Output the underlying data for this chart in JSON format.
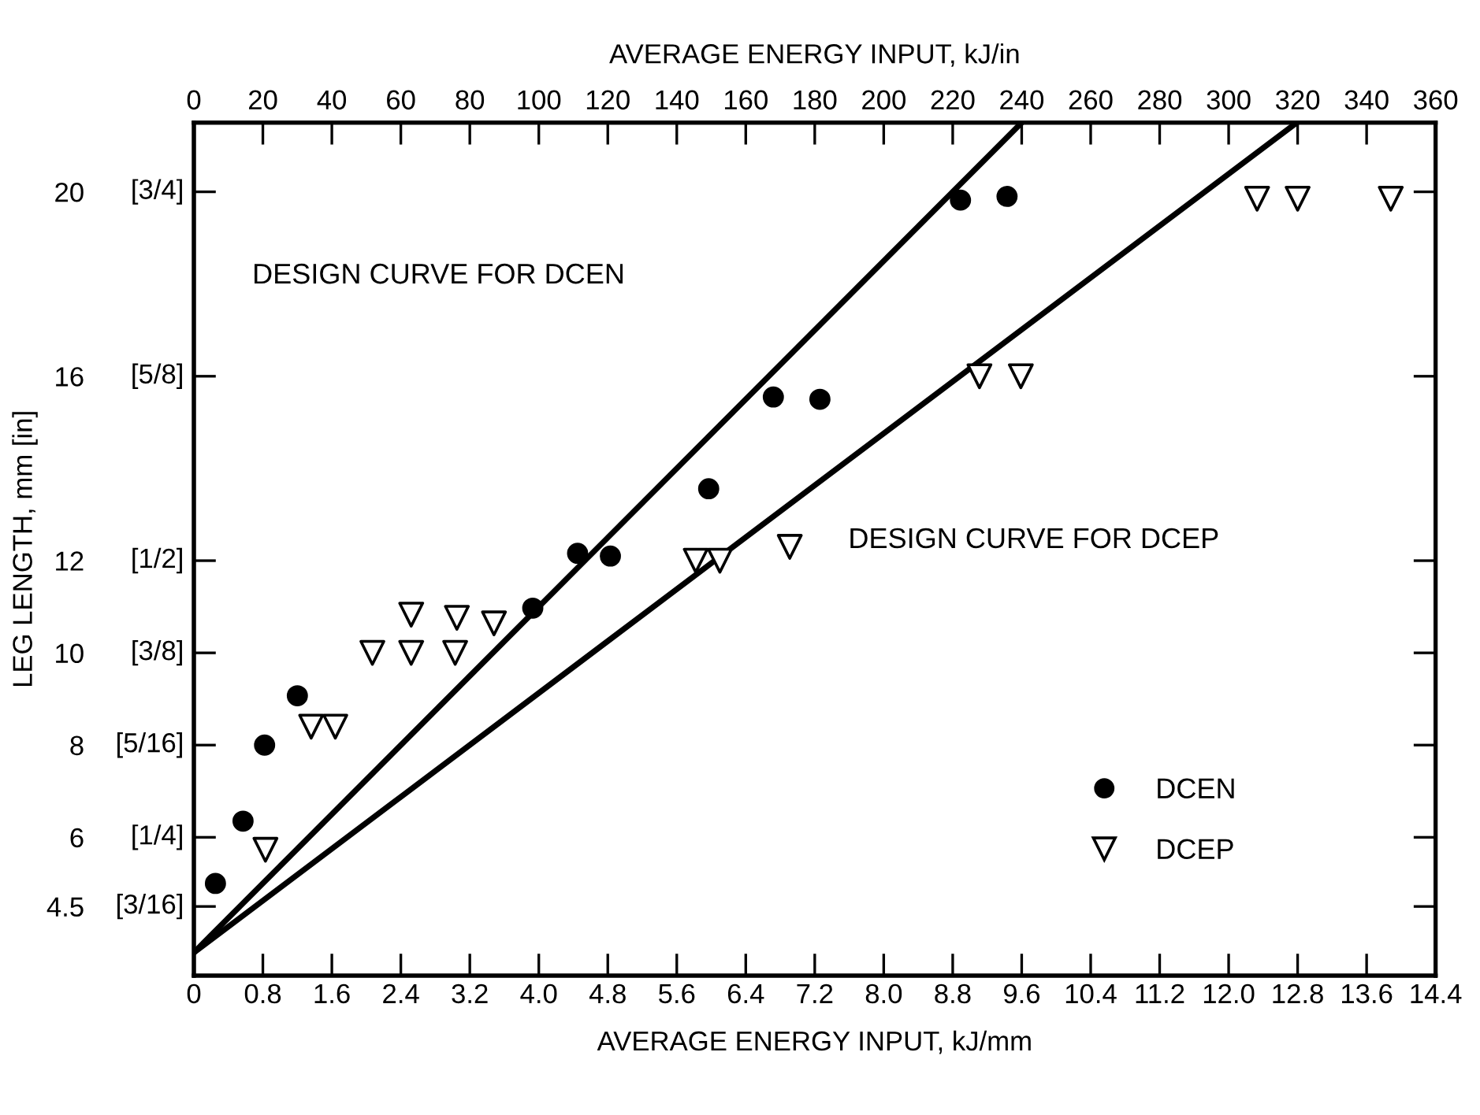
{
  "chart_data": {
    "type": "scatter",
    "xlabel": "AVERAGE ENERGY INPUT, kJ/mm",
    "x2label": "AVERAGE ENERGY INPUT, kJ/in",
    "ylabel": "LEG LENGTH, mm [in]",
    "xlim": [
      0,
      14.4
    ],
    "xticks": [
      0,
      0.8,
      1.6,
      2.4,
      3.2,
      {
        "value": 4,
        "label": "4.0"
      },
      4.8,
      5.6,
      6.4,
      7.2,
      {
        "value": 8,
        "label": "8.0"
      },
      8.8,
      9.6,
      10.4,
      11.2,
      {
        "value": 12,
        "label": "12.0"
      },
      12.8,
      13.6,
      14.4
    ],
    "x2lim": [
      0,
      360
    ],
    "x2ticks": [
      0,
      20,
      40,
      60,
      80,
      100,
      120,
      140,
      160,
      180,
      200,
      220,
      240,
      260,
      280,
      300,
      320,
      340,
      360
    ],
    "ylim": [
      3,
      21.5
    ],
    "yticks": [
      4.5,
      6,
      8,
      10,
      12,
      16,
      20
    ],
    "grid": false,
    "legend": "bottom right",
    "series": [
      {
        "name": "DCEN",
        "marker": "circle",
        "color": "#000000",
        "x": [
          0.25,
          0.57,
          0.82,
          1.2,
          3.93,
          4.45,
          4.83,
          5.97,
          6.72,
          7.26,
          8.89,
          9.43
        ],
        "values": [
          5.0,
          6.35,
          8.0,
          9.07,
          10.97,
          12.16,
          12.1,
          13.56,
          15.55,
          15.5,
          19.82,
          19.9
        ]
      },
      {
        "name": "DCEP",
        "marker": "triangle",
        "color": "#000000",
        "x": [
          0.83,
          1.36,
          1.64,
          2.07,
          2.52,
          3.03,
          2.52,
          3.05,
          3.48,
          5.82,
          6.1,
          6.91,
          9.11,
          9.59,
          12.33,
          12.8,
          13.88
        ],
        "values": [
          5.73,
          8.4,
          8.4,
          10.0,
          10.0,
          10.0,
          10.83,
          10.76,
          10.64,
          12.0,
          12.0,
          12.3,
          16.0,
          16.0,
          19.85,
          19.85,
          19.85
        ]
      },
      {
        "type": "line",
        "marker": "none",
        "line_style": "solid",
        "color": "#000000",
        "x": [
          0,
          9.6
        ],
        "values": [
          3.5,
          21.5
        ]
      },
      {
        "type": "line",
        "marker": "none",
        "line_style": "solid",
        "color": "#000000",
        "x": [
          0,
          12.79
        ],
        "values": [
          3.5,
          21.5
        ]
      }
    ],
    "annotations": [
      "DESIGN CURVE FOR DCEN",
      "DESIGN CURVE FOR DCEP",
      "[3/16]",
      "[1/4]",
      "[5/16]",
      "[3/8]",
      "[1/2]",
      "[5/8]",
      "[3/4]"
    ]
  }
}
